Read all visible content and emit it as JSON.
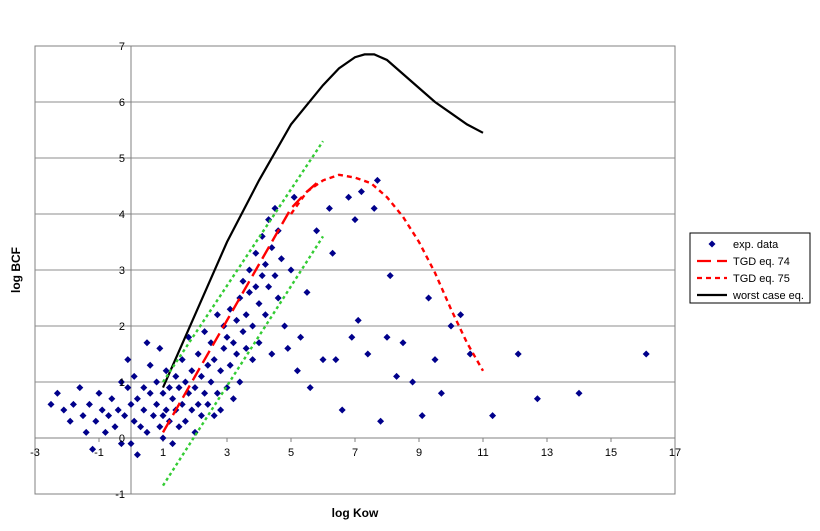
{
  "chart_data": {
    "type": "scatter",
    "title": "",
    "xlabel": "log Kow",
    "ylabel": "log BCF",
    "xlim": [
      -3,
      17
    ],
    "ylim": [
      -1,
      7
    ],
    "x_ticks": [
      "-3",
      "-1",
      "1",
      "3",
      "5",
      "7",
      "9",
      "11",
      "13",
      "15",
      "17"
    ],
    "y_ticks": [
      "-1",
      "0",
      "1",
      "2",
      "3",
      "4",
      "5",
      "6",
      "7"
    ],
    "grid": "horizontal",
    "legend_position": "right",
    "series": [
      {
        "name": "exp. data",
        "kind": "markers",
        "color": "#00008b",
        "points": [
          [
            -2.5,
            0.6
          ],
          [
            -2.3,
            0.8
          ],
          [
            -2.1,
            0.5
          ],
          [
            -1.9,
            0.3
          ],
          [
            -1.8,
            0.6
          ],
          [
            -1.6,
            0.9
          ],
          [
            -1.5,
            0.4
          ],
          [
            -1.4,
            0.1
          ],
          [
            -1.3,
            0.6
          ],
          [
            -1.2,
            -0.2
          ],
          [
            -1.1,
            0.3
          ],
          [
            -1.0,
            0.8
          ],
          [
            -0.9,
            0.5
          ],
          [
            -0.8,
            0.1
          ],
          [
            -0.7,
            0.4
          ],
          [
            -0.6,
            0.7
          ],
          [
            -0.5,
            0.2
          ],
          [
            -0.4,
            0.5
          ],
          [
            -0.3,
            -0.1
          ],
          [
            -0.3,
            1.0
          ],
          [
            -0.2,
            0.4
          ],
          [
            -0.1,
            0.9
          ],
          [
            -0.1,
            1.4
          ],
          [
            0.0,
            0.6
          ],
          [
            0.0,
            -0.1
          ],
          [
            0.1,
            1.1
          ],
          [
            0.1,
            0.3
          ],
          [
            0.2,
            -0.3
          ],
          [
            0.2,
            0.7
          ],
          [
            0.3,
            0.2
          ],
          [
            0.4,
            0.9
          ],
          [
            0.4,
            0.5
          ],
          [
            0.5,
            0.1
          ],
          [
            0.5,
            1.7
          ],
          [
            0.6,
            0.8
          ],
          [
            0.6,
            1.3
          ],
          [
            0.7,
            0.4
          ],
          [
            0.8,
            1.0
          ],
          [
            0.8,
            0.6
          ],
          [
            0.9,
            0.2
          ],
          [
            0.9,
            1.6
          ],
          [
            1.0,
            0.8
          ],
          [
            1.0,
            0.4
          ],
          [
            1.0,
            0.0
          ],
          [
            1.1,
            1.2
          ],
          [
            1.1,
            0.5
          ],
          [
            1.2,
            0.9
          ],
          [
            1.2,
            0.3
          ],
          [
            1.3,
            0.7
          ],
          [
            1.3,
            -0.1
          ],
          [
            1.4,
            1.1
          ],
          [
            1.4,
            0.5
          ],
          [
            1.5,
            0.9
          ],
          [
            1.5,
            0.2
          ],
          [
            1.6,
            1.4
          ],
          [
            1.6,
            0.6
          ],
          [
            1.7,
            1.0
          ],
          [
            1.7,
            0.3
          ],
          [
            1.8,
            0.8
          ],
          [
            1.8,
            1.8
          ],
          [
            1.9,
            0.5
          ],
          [
            1.9,
            1.2
          ],
          [
            2.0,
            0.9
          ],
          [
            2.0,
            0.1
          ],
          [
            2.1,
            1.5
          ],
          [
            2.1,
            0.6
          ],
          [
            2.2,
            1.1
          ],
          [
            2.2,
            0.4
          ],
          [
            2.3,
            0.8
          ],
          [
            2.3,
            1.9
          ],
          [
            2.4,
            1.3
          ],
          [
            2.4,
            0.6
          ],
          [
            2.5,
            1.0
          ],
          [
            2.5,
            1.7
          ],
          [
            2.6,
            0.4
          ],
          [
            2.6,
            1.4
          ],
          [
            2.7,
            0.8
          ],
          [
            2.7,
            2.2
          ],
          [
            2.8,
            1.2
          ],
          [
            2.8,
            0.5
          ],
          [
            2.9,
            1.6
          ],
          [
            2.9,
            2.0
          ],
          [
            3.0,
            0.9
          ],
          [
            3.0,
            1.8
          ],
          [
            3.1,
            2.3
          ],
          [
            3.1,
            1.3
          ],
          [
            3.2,
            1.7
          ],
          [
            3.2,
            0.7
          ],
          [
            3.3,
            2.1
          ],
          [
            3.3,
            1.5
          ],
          [
            3.4,
            2.5
          ],
          [
            3.4,
            1.0
          ],
          [
            3.5,
            1.9
          ],
          [
            3.5,
            2.8
          ],
          [
            3.6,
            2.2
          ],
          [
            3.6,
            1.6
          ],
          [
            3.7,
            2.6
          ],
          [
            3.7,
            3.0
          ],
          [
            3.8,
            2.0
          ],
          [
            3.8,
            1.4
          ],
          [
            3.9,
            2.7
          ],
          [
            3.9,
            3.3
          ],
          [
            4.0,
            2.4
          ],
          [
            4.0,
            1.7
          ],
          [
            4.1,
            2.9
          ],
          [
            4.1,
            3.6
          ],
          [
            4.2,
            2.2
          ],
          [
            4.2,
            3.1
          ],
          [
            4.3,
            2.7
          ],
          [
            4.3,
            3.9
          ],
          [
            4.4,
            3.4
          ],
          [
            4.4,
            1.5
          ],
          [
            4.5,
            2.9
          ],
          [
            4.5,
            4.1
          ],
          [
            4.6,
            3.7
          ],
          [
            4.6,
            2.5
          ],
          [
            4.7,
            3.2
          ],
          [
            4.8,
            2.0
          ],
          [
            4.9,
            1.6
          ],
          [
            5.0,
            3.0
          ],
          [
            5.1,
            4.3
          ],
          [
            5.2,
            1.2
          ],
          [
            5.3,
            1.8
          ],
          [
            5.5,
            2.6
          ],
          [
            5.6,
            0.9
          ],
          [
            5.8,
            3.7
          ],
          [
            6.0,
            1.4
          ],
          [
            6.2,
            4.1
          ],
          [
            6.3,
            3.3
          ],
          [
            6.4,
            1.4
          ],
          [
            6.6,
            0.5
          ],
          [
            6.8,
            4.3
          ],
          [
            6.9,
            1.8
          ],
          [
            7.0,
            3.9
          ],
          [
            7.1,
            2.1
          ],
          [
            7.2,
            4.4
          ],
          [
            7.4,
            1.5
          ],
          [
            7.6,
            4.1
          ],
          [
            7.7,
            4.6
          ],
          [
            7.8,
            0.3
          ],
          [
            8.0,
            1.8
          ],
          [
            8.1,
            2.9
          ],
          [
            8.3,
            1.1
          ],
          [
            8.5,
            1.7
          ],
          [
            8.8,
            1.0
          ],
          [
            9.1,
            0.4
          ],
          [
            9.3,
            2.5
          ],
          [
            9.5,
            1.4
          ],
          [
            9.7,
            0.8
          ],
          [
            10.0,
            2.0
          ],
          [
            10.3,
            2.2
          ],
          [
            10.6,
            1.5
          ],
          [
            11.3,
            0.4
          ],
          [
            12.1,
            1.5
          ],
          [
            12.7,
            0.7
          ],
          [
            14.0,
            0.8
          ],
          [
            16.1,
            1.5
          ]
        ]
      },
      {
        "name": "TGD eq. 74",
        "kind": "line",
        "dash": "long-dash",
        "color": "#ff0000",
        "x": [
          1.0,
          1.5,
          2.0,
          2.5,
          3.0,
          3.5,
          4.0,
          4.5,
          5.0,
          5.5,
          5.9
        ],
        "y": [
          0.1,
          0.6,
          1.1,
          1.6,
          2.1,
          2.6,
          3.1,
          3.6,
          4.1,
          4.4,
          4.6
        ]
      },
      {
        "name": "TGD eq. 75",
        "kind": "line",
        "dash": "short-dash",
        "color": "#ff0000",
        "x": [
          5.0,
          5.5,
          6.0,
          6.5,
          7.0,
          7.5,
          8.0,
          8.5,
          9.0,
          9.5,
          10.0,
          10.5,
          11.0
        ],
        "y": [
          4.0,
          4.4,
          4.6,
          4.7,
          4.65,
          4.55,
          4.3,
          3.95,
          3.5,
          2.95,
          2.3,
          1.7,
          1.2
        ]
      },
      {
        "name": "worst case eq.",
        "kind": "line",
        "dash": "solid",
        "color": "#000000",
        "x": [
          1.0,
          2.0,
          3.0,
          4.0,
          5.0,
          6.0,
          6.5,
          7.0,
          7.3,
          7.6,
          8.0,
          8.5,
          9.0,
          9.5,
          10.0,
          10.5,
          11.0
        ],
        "y": [
          0.9,
          2.2,
          3.5,
          4.6,
          5.6,
          6.3,
          6.6,
          6.8,
          6.85,
          6.85,
          6.75,
          6.5,
          6.25,
          6.0,
          5.8,
          5.6,
          5.45
        ]
      },
      {
        "name": "",
        "kind": "line",
        "dash": "dotted",
        "color": "#33cc33",
        "legend": false,
        "x": [
          1.0,
          6.0
        ],
        "y": [
          1.0,
          5.3
        ]
      },
      {
        "name": "",
        "kind": "line",
        "dash": "dotted",
        "color": "#33cc33",
        "legend": false,
        "x": [
          1.0,
          6.0
        ],
        "y": [
          -0.85,
          3.6
        ]
      }
    ]
  }
}
